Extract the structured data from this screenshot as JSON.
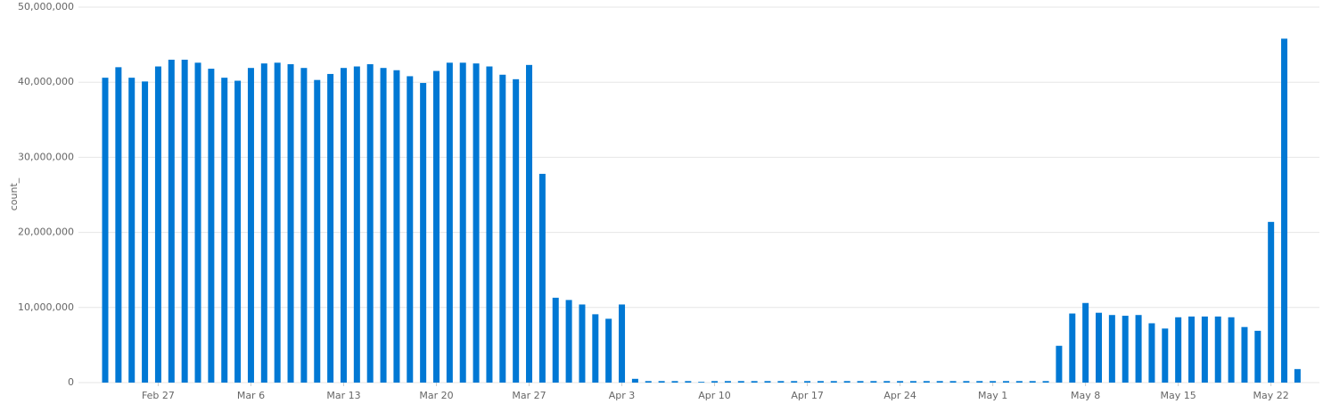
{
  "chart_data": {
    "type": "bar",
    "y_label": "count_",
    "color": "#0078d4",
    "grid": true,
    "categories": [
      "Feb 23",
      "Feb 24",
      "Feb 25",
      "Feb 26",
      "Feb 27",
      "Feb 28",
      "Mar 1",
      "Mar 2",
      "Mar 3",
      "Mar 4",
      "Mar 5",
      "Mar 6",
      "Mar 7",
      "Mar 8",
      "Mar 9",
      "Mar 10",
      "Mar 11",
      "Mar 12",
      "Mar 13",
      "Mar 14",
      "Mar 15",
      "Mar 16",
      "Mar 17",
      "Mar 18",
      "Mar 19",
      "Mar 20",
      "Mar 21",
      "Mar 22",
      "Mar 23",
      "Mar 24",
      "Mar 25",
      "Mar 26",
      "Mar 27",
      "Mar 28",
      "Mar 29",
      "Mar 30",
      "Mar 31",
      "Apr 1",
      "Apr 2",
      "Apr 3",
      "Apr 4",
      "Apr 5",
      "Apr 6",
      "Apr 7",
      "Apr 8",
      "Apr 9",
      "Apr 10",
      "Apr 11",
      "Apr 12",
      "Apr 13",
      "Apr 14",
      "Apr 15",
      "Apr 16",
      "Apr 17",
      "Apr 18",
      "Apr 19",
      "Apr 20",
      "Apr 21",
      "Apr 22",
      "Apr 23",
      "Apr 24",
      "Apr 25",
      "Apr 26",
      "Apr 27",
      "Apr 28",
      "Apr 29",
      "Apr 30",
      "May 1",
      "May 2",
      "May 3",
      "May 4",
      "May 5",
      "May 6",
      "May 7",
      "May 8",
      "May 9",
      "May 10",
      "May 11",
      "May 12",
      "May 13",
      "May 14",
      "May 15",
      "May 16",
      "May 17",
      "May 18",
      "May 19",
      "May 20",
      "May 21",
      "May 22",
      "May 23",
      "May 24"
    ],
    "values": [
      40600000,
      42000000,
      40600000,
      40100000,
      42100000,
      43000000,
      43000000,
      42600000,
      41800000,
      40600000,
      40200000,
      41900000,
      42500000,
      42600000,
      42400000,
      41900000,
      40300000,
      41100000,
      41900000,
      42100000,
      42400000,
      41900000,
      41600000,
      40800000,
      39900000,
      41500000,
      42600000,
      42600000,
      42500000,
      42100000,
      41000000,
      40400000,
      42300000,
      27800000,
      11300000,
      11000000,
      10400000,
      9100000,
      8500000,
      10400000,
      500000,
      200000,
      200000,
      200000,
      200000,
      100000,
      200000,
      200000,
      200000,
      200000,
      200000,
      200000,
      200000,
      200000,
      200000,
      200000,
      200000,
      200000,
      200000,
      200000,
      200000,
      200000,
      200000,
      200000,
      200000,
      200000,
      200000,
      200000,
      200000,
      200000,
      200000,
      200000,
      4900000,
      9200000,
      10600000,
      9300000,
      9000000,
      8900000,
      9000000,
      7900000,
      7200000,
      8700000,
      8800000,
      8800000,
      8800000,
      8700000,
      7400000,
      6900000,
      21400000,
      45800000,
      1800000
    ],
    "xticks": [
      "Feb 27",
      "Mar 6",
      "Mar 13",
      "Mar 20",
      "Mar 27",
      "Apr 3",
      "Apr 10",
      "Apr 17",
      "Apr 24",
      "May 1",
      "May 8",
      "May 15",
      "May 22"
    ],
    "ylim": [
      0,
      50000000
    ],
    "yticks": [
      0,
      {
        "value": 10000000,
        "label": "10,000,000"
      },
      {
        "value": 20000000,
        "label": "20,000,000"
      },
      {
        "value": 30000000,
        "label": "30,000,000"
      },
      {
        "value": 40000000,
        "label": "40,000,000"
      },
      {
        "value": 50000000,
        "label": "50,000,000"
      }
    ]
  }
}
